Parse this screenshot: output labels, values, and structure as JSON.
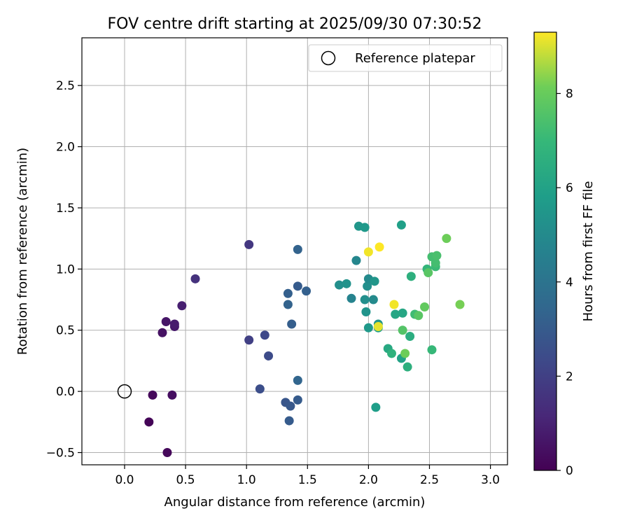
{
  "chart_data": {
    "type": "scatter",
    "title": "FOV centre drift starting at 2025/09/30 07:30:52",
    "xlabel": "Angular distance from reference (arcmin)",
    "ylabel": "Rotation from reference (arcmin)",
    "xlim": [
      -0.35,
      3.14
    ],
    "ylim": [
      -0.6,
      2.89
    ],
    "xticks": [
      0.0,
      0.5,
      1.0,
      1.5,
      2.0,
      2.5,
      3.0
    ],
    "xtick_labels": [
      "0.0",
      "0.5",
      "1.0",
      "1.5",
      "2.0",
      "2.5",
      "3.0"
    ],
    "yticks": [
      -0.5,
      0.0,
      0.5,
      1.0,
      1.5,
      2.0,
      2.5
    ],
    "ytick_labels": [
      "−0.5",
      "0.0",
      "0.5",
      "1.0",
      "1.5",
      "2.0",
      "2.5"
    ],
    "grid": true,
    "legend": {
      "position": "top-right",
      "entries": [
        {
          "label": "Reference platepar",
          "marker": "open-circle"
        }
      ]
    },
    "reference_point": {
      "x": 0.0,
      "y": 0.0
    },
    "colorbar": {
      "label": "Hours from first FF file",
      "range": [
        0,
        9.3
      ],
      "ticks": [
        0,
        2,
        4,
        6,
        8
      ],
      "tick_labels": [
        "0",
        "2",
        "4",
        "6",
        "8"
      ],
      "colormap": "viridis"
    },
    "points": [
      {
        "x": 0.2,
        "y": -0.25,
        "h": 0.1
      },
      {
        "x": 0.35,
        "y": -0.5,
        "h": 0.2
      },
      {
        "x": 0.23,
        "y": -0.03,
        "h": 0.2
      },
      {
        "x": 0.39,
        "y": -0.03,
        "h": 0.4
      },
      {
        "x": 0.31,
        "y": 0.48,
        "h": 0.5
      },
      {
        "x": 0.34,
        "y": 0.57,
        "h": 0.6
      },
      {
        "x": 0.41,
        "y": 0.53,
        "h": 0.7
      },
      {
        "x": 0.41,
        "y": 0.55,
        "h": 0.8
      },
      {
        "x": 0.47,
        "y": 0.7,
        "h": 0.9
      },
      {
        "x": 0.58,
        "y": 0.92,
        "h": 1.5
      },
      {
        "x": 1.02,
        "y": 1.2,
        "h": 1.7
      },
      {
        "x": 1.02,
        "y": 0.42,
        "h": 2.0
      },
      {
        "x": 1.15,
        "y": 0.46,
        "h": 2.3
      },
      {
        "x": 1.18,
        "y": 0.29,
        "h": 2.4
      },
      {
        "x": 1.11,
        "y": 0.02,
        "h": 2.5
      },
      {
        "x": 1.32,
        "y": -0.09,
        "h": 2.8
      },
      {
        "x": 1.35,
        "y": -0.24,
        "h": 3.0
      },
      {
        "x": 1.36,
        "y": -0.12,
        "h": 2.9
      },
      {
        "x": 1.42,
        "y": -0.07,
        "h": 3.0
      },
      {
        "x": 1.42,
        "y": 0.09,
        "h": 3.4
      },
      {
        "x": 1.37,
        "y": 0.55,
        "h": 3.1
      },
      {
        "x": 1.34,
        "y": 0.71,
        "h": 3.3
      },
      {
        "x": 1.34,
        "y": 0.8,
        "h": 3.2
      },
      {
        "x": 1.42,
        "y": 0.86,
        "h": 3.0
      },
      {
        "x": 1.49,
        "y": 0.82,
        "h": 3.2
      },
      {
        "x": 1.42,
        "y": 1.16,
        "h": 3.3
      },
      {
        "x": 1.76,
        "y": 0.87,
        "h": 5.2
      },
      {
        "x": 1.82,
        "y": 0.88,
        "h": 5.3
      },
      {
        "x": 1.86,
        "y": 0.76,
        "h": 4.7
      },
      {
        "x": 1.9,
        "y": 1.07,
        "h": 4.8
      },
      {
        "x": 1.92,
        "y": 1.35,
        "h": 5.5
      },
      {
        "x": 1.97,
        "y": 1.34,
        "h": 5.6
      },
      {
        "x": 1.97,
        "y": 0.75,
        "h": 5.2
      },
      {
        "x": 1.98,
        "y": 0.65,
        "h": 5.4
      },
      {
        "x": 1.99,
        "y": 0.86,
        "h": 5.2
      },
      {
        "x": 2.0,
        "y": 0.92,
        "h": 5.0
      },
      {
        "x": 2.0,
        "y": 0.52,
        "h": 5.6
      },
      {
        "x": 2.04,
        "y": 0.75,
        "h": 5.0
      },
      {
        "x": 2.05,
        "y": 0.9,
        "h": 5.5
      },
      {
        "x": 2.06,
        "y": -0.13,
        "h": 5.8
      },
      {
        "x": 2.08,
        "y": 0.55,
        "h": 5.5
      },
      {
        "x": 2.08,
        "y": 0.52,
        "h": 5.8
      },
      {
        "x": 2.0,
        "y": 1.14,
        "h": 9.2
      },
      {
        "x": 2.09,
        "y": 1.18,
        "h": 9.3
      },
      {
        "x": 2.08,
        "y": 0.53,
        "h": 9.1
      },
      {
        "x": 2.21,
        "y": 0.71,
        "h": 9.2
      },
      {
        "x": 2.22,
        "y": 0.63,
        "h": 6.2
      },
      {
        "x": 2.16,
        "y": 0.35,
        "h": 6.3
      },
      {
        "x": 2.19,
        "y": 0.31,
        "h": 6.7
      },
      {
        "x": 2.27,
        "y": 1.36,
        "h": 5.9
      },
      {
        "x": 2.27,
        "y": 0.27,
        "h": 6.0
      },
      {
        "x": 2.28,
        "y": 0.64,
        "h": 6.2
      },
      {
        "x": 2.28,
        "y": 0.5,
        "h": 7.6
      },
      {
        "x": 2.3,
        "y": 0.31,
        "h": 8.1
      },
      {
        "x": 2.32,
        "y": 0.2,
        "h": 6.6
      },
      {
        "x": 2.34,
        "y": 0.45,
        "h": 6.5
      },
      {
        "x": 2.35,
        "y": 0.94,
        "h": 6.6
      },
      {
        "x": 2.38,
        "y": 0.63,
        "h": 7.2
      },
      {
        "x": 2.41,
        "y": 0.62,
        "h": 7.7
      },
      {
        "x": 2.46,
        "y": 0.69,
        "h": 7.9
      },
      {
        "x": 2.48,
        "y": 1.0,
        "h": 6.9
      },
      {
        "x": 2.49,
        "y": 0.97,
        "h": 7.7
      },
      {
        "x": 2.52,
        "y": 1.1,
        "h": 7.3
      },
      {
        "x": 2.52,
        "y": 0.34,
        "h": 7.0
      },
      {
        "x": 2.55,
        "y": 1.02,
        "h": 7.1
      },
      {
        "x": 2.55,
        "y": 1.05,
        "h": 7.3
      },
      {
        "x": 2.56,
        "y": 1.11,
        "h": 7.4
      },
      {
        "x": 2.64,
        "y": 1.25,
        "h": 8.1
      },
      {
        "x": 2.75,
        "y": 0.71,
        "h": 8.2
      }
    ]
  }
}
